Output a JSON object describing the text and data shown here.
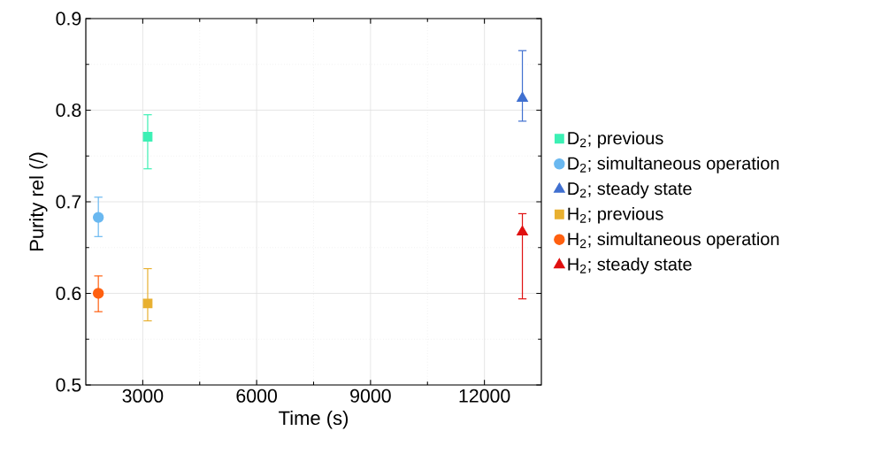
{
  "chart_data": {
    "type": "scatter",
    "xlabel": "Time (s)",
    "ylabel": "Purity rel (/)",
    "xlim": [
      1500,
      13500
    ],
    "xticks": [
      3000,
      6000,
      9000,
      12000
    ],
    "ylim": [
      0.5,
      0.9
    ],
    "yticks": [
      0.5,
      0.6,
      0.7,
      0.8,
      0.9
    ],
    "grid": true,
    "legend": "right",
    "series": [
      {
        "name": "D$_{2}$; previous",
        "color": "#3cf0b4",
        "marker": "square",
        "x": [
          3130
        ],
        "values": [
          0.771
        ],
        "errors": [
          [
            0.736,
            0.795
          ]
        ]
      },
      {
        "name": "D$_{2}$; simultaneous operation",
        "color": "#6ab8f0",
        "marker": "circle",
        "x": [
          1830
        ],
        "values": [
          0.683
        ],
        "errors": [
          [
            0.662,
            0.705
          ]
        ]
      },
      {
        "name": "D$_{2}$; steady state",
        "color": "#4070d0",
        "marker": "triangle",
        "x": [
          13000
        ],
        "values": [
          0.813
        ],
        "errors": [
          [
            0.788,
            0.865
          ]
        ]
      },
      {
        "name": "H$_{2}$; previous",
        "color": "#e8b030",
        "marker": "square",
        "x": [
          3130
        ],
        "values": [
          0.589
        ],
        "errors": [
          [
            0.57,
            0.627
          ]
        ]
      },
      {
        "name": "H$_{2}$; simultaneous operation",
        "color": "#ff6010",
        "marker": "circle",
        "x": [
          1830
        ],
        "values": [
          0.6
        ],
        "errors": [
          [
            0.58,
            0.619
          ]
        ]
      },
      {
        "name": "H$_{2}$; steady state",
        "color": "#e01010",
        "marker": "triangle",
        "x": [
          13000
        ],
        "values": [
          0.667
        ],
        "errors": [
          [
            0.594,
            0.687
          ]
        ]
      }
    ]
  }
}
